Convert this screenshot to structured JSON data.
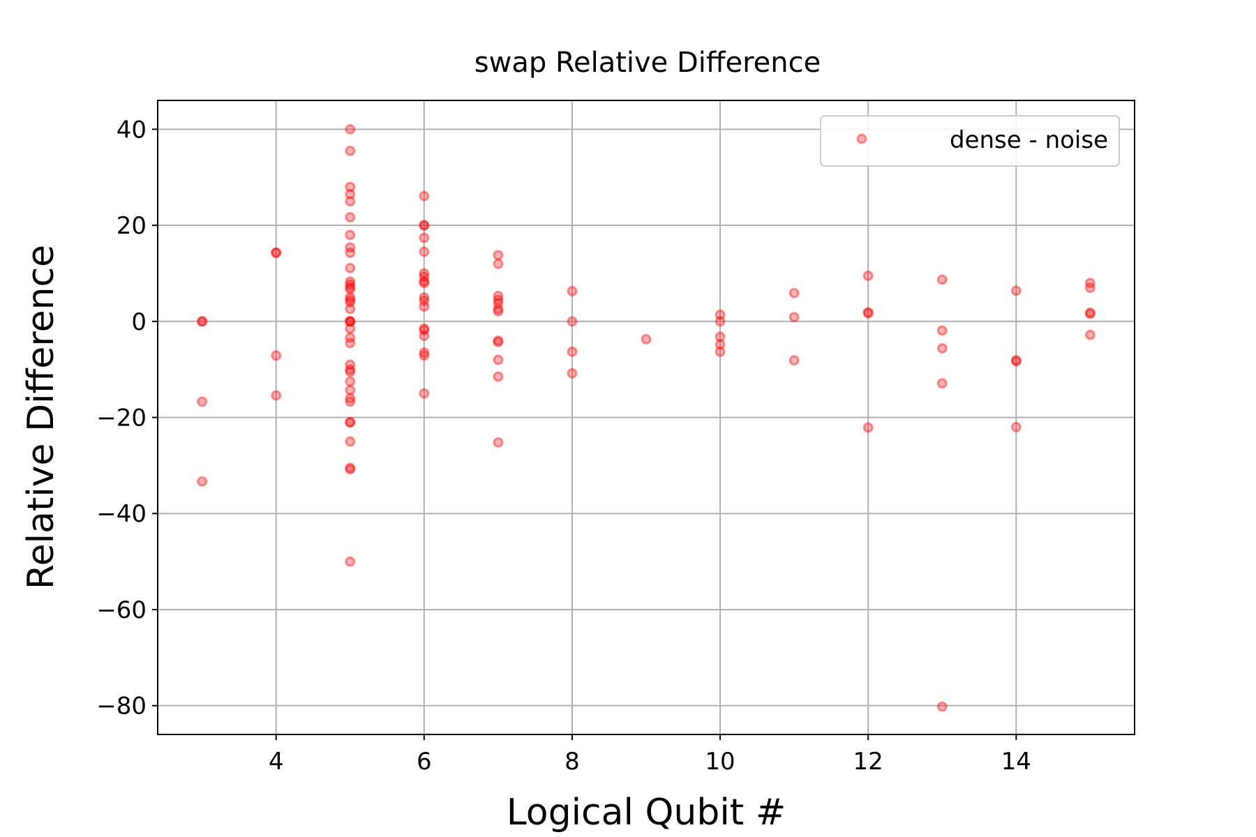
{
  "chart_data": {
    "type": "scatter",
    "title": "swap Relative Difference",
    "xlabel": "Logical Qubit #",
    "ylabel": "Relative Difference",
    "xlim": [
      2.4,
      15.6
    ],
    "ylim": [
      -86,
      46
    ],
    "xticks": [
      4,
      6,
      8,
      10,
      12,
      14
    ],
    "yticks": [
      40,
      20,
      0,
      -20,
      -40,
      -60,
      -80
    ],
    "xtick_labels": [
      "4",
      "6",
      "8",
      "10",
      "12",
      "14"
    ],
    "ytick_labels": [
      "40",
      "20",
      "0",
      "−20",
      "−40",
      "−60",
      "−80"
    ],
    "grid": true,
    "legend_position": "top-right",
    "series": [
      {
        "name": "dense - noise",
        "color": "#ff0000",
        "marker": "circle",
        "points": [
          [
            3,
            0
          ],
          [
            3,
            0
          ],
          [
            3,
            -16.7
          ],
          [
            3,
            -33.3
          ],
          [
            4,
            14.3
          ],
          [
            4,
            14.3
          ],
          [
            4,
            -7.1
          ],
          [
            4,
            -15.4
          ],
          [
            5,
            40
          ],
          [
            5,
            35.5
          ],
          [
            5,
            28
          ],
          [
            5,
            26.5
          ],
          [
            5,
            25
          ],
          [
            5,
            21.7
          ],
          [
            5,
            18
          ],
          [
            5,
            15.4
          ],
          [
            5,
            14.3
          ],
          [
            5,
            11.1
          ],
          [
            5,
            8.3
          ],
          [
            5,
            7.7
          ],
          [
            5,
            7.1
          ],
          [
            5,
            6.7
          ],
          [
            5,
            5
          ],
          [
            5,
            4.5
          ],
          [
            5,
            4
          ],
          [
            5,
            2.6
          ],
          [
            5,
            0
          ],
          [
            5,
            0
          ],
          [
            5,
            0
          ],
          [
            5,
            -1.5
          ],
          [
            5,
            -3.4
          ],
          [
            5,
            -4.5
          ],
          [
            5,
            -9
          ],
          [
            5,
            -10
          ],
          [
            5,
            -10.5
          ],
          [
            5,
            -12.5
          ],
          [
            5,
            -14.3
          ],
          [
            5,
            -16
          ],
          [
            5,
            -16.7
          ],
          [
            5,
            -21
          ],
          [
            5,
            -21
          ],
          [
            5,
            -25
          ],
          [
            5,
            -30.5
          ],
          [
            5,
            -30.8
          ],
          [
            5,
            -50
          ],
          [
            6,
            26.1
          ],
          [
            6,
            20
          ],
          [
            6,
            20
          ],
          [
            6,
            17.4
          ],
          [
            6,
            14.5
          ],
          [
            6,
            10
          ],
          [
            6,
            9.3
          ],
          [
            6,
            8.3
          ],
          [
            6,
            8
          ],
          [
            6,
            5
          ],
          [
            6,
            4.3
          ],
          [
            6,
            3.1
          ],
          [
            6,
            -1.5
          ],
          [
            6,
            -1.8
          ],
          [
            6,
            -3
          ],
          [
            6,
            -6.5
          ],
          [
            6,
            -7.1
          ],
          [
            6,
            -15
          ],
          [
            7,
            13.8
          ],
          [
            7,
            12
          ],
          [
            7,
            5.3
          ],
          [
            7,
            4.5
          ],
          [
            7,
            3.8
          ],
          [
            7,
            2.6
          ],
          [
            7,
            2.1
          ],
          [
            7,
            -4
          ],
          [
            7,
            -4.3
          ],
          [
            7,
            -8
          ],
          [
            7,
            -11.5
          ],
          [
            7,
            -25.2
          ],
          [
            8,
            6.3
          ],
          [
            8,
            0
          ],
          [
            8,
            -6.3
          ],
          [
            8,
            -10.8
          ],
          [
            9,
            -3.7
          ],
          [
            10,
            1.4
          ],
          [
            10,
            0
          ],
          [
            10,
            -3.2
          ],
          [
            10,
            -4.8
          ],
          [
            10,
            -6.3
          ],
          [
            11,
            5.9
          ],
          [
            11,
            0.9
          ],
          [
            11,
            -8.1
          ],
          [
            12,
            9.5
          ],
          [
            12,
            1.9
          ],
          [
            12,
            1.7
          ],
          [
            12,
            -22.1
          ],
          [
            13,
            8.7
          ],
          [
            13,
            -1.9
          ],
          [
            13,
            -5.6
          ],
          [
            13,
            -12.9
          ],
          [
            13,
            -80.2
          ],
          [
            14,
            6.4
          ],
          [
            14,
            -8.1
          ],
          [
            14,
            -8.3
          ],
          [
            14,
            -22
          ],
          [
            15,
            8
          ],
          [
            15,
            7
          ],
          [
            15,
            1.8
          ],
          [
            15,
            1.6
          ],
          [
            15,
            -2.8
          ]
        ]
      }
    ]
  }
}
